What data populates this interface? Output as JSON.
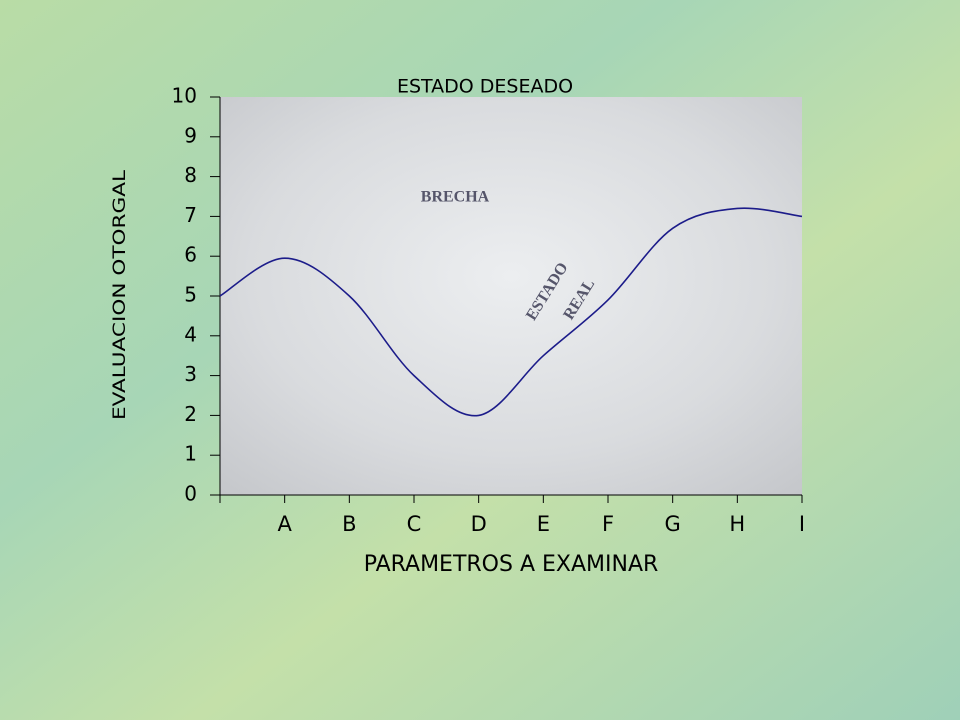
{
  "chart_data": {
    "type": "line",
    "title": "ESTADO DESEADO",
    "x_label": "PARAMETROS A EXAMINAR",
    "y_label": "EVALUACION OTORGAL",
    "annotations": [
      "BRECHA",
      "ESTADO",
      "REAL"
    ],
    "categories": [
      null,
      "A",
      "B",
      "C",
      "D",
      "E",
      "F",
      "G",
      "H",
      "I"
    ],
    "values": [
      5.0,
      5.95,
      5.0,
      3.0,
      2.0,
      3.5,
      4.9,
      6.7,
      7.2,
      7.0
    ],
    "color": "#1c1c8a",
    "ylim": [
      0,
      10
    ],
    "yticks": [
      0,
      1,
      2,
      3,
      4,
      5,
      6,
      7,
      8,
      9,
      10
    ]
  }
}
